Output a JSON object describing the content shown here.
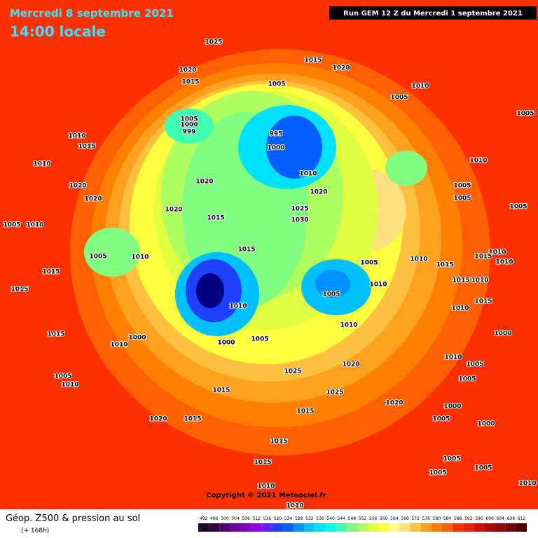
{
  "header": {
    "date": "Mercredi 8 septembre 2021",
    "time": "14:00 locale",
    "run": "Run GEM 12 Z du Mercredi 1 septembre 2021"
  },
  "copyright": "Copyright © 2021 Meteociel.fr",
  "legend": {
    "title": "Géop. Z500 & pression au sol",
    "lead": "(+ 168h)",
    "scale": [
      492,
      496,
      500,
      504,
      508,
      512,
      516,
      520,
      524,
      528,
      532,
      536,
      540,
      544,
      548,
      552,
      556,
      560,
      564,
      568,
      572,
      576,
      580,
      584,
      588,
      592,
      596,
      600,
      604,
      608,
      612
    ],
    "colors": [
      "#20002a",
      "#300040",
      "#4a0070",
      "#6a00a0",
      "#8000c0",
      "#9000e0",
      "#6020ff",
      "#2040ff",
      "#0060ff",
      "#0090ff",
      "#00c0ff",
      "#00e0ff",
      "#00ffe0",
      "#40ffb0",
      "#80ff80",
      "#b0ff60",
      "#e0ff40",
      "#ffff40",
      "#ffff90",
      "#ffe080",
      "#ffc040",
      "#ffa020",
      "#ff8000",
      "#ff6000",
      "#ff3000",
      "#f02000",
      "#d01000",
      "#b00000",
      "#900000",
      "#700000",
      "#500000"
    ]
  },
  "pressure_labels": [
    "1025",
    "1015",
    "1020",
    "1020",
    "1015",
    "1005",
    "1010",
    "1005",
    "1005",
    "1005",
    "1000",
    "999",
    "995",
    "1000",
    "1010",
    "1015",
    "1010",
    "1010",
    "1010",
    "1020",
    "1020",
    "1005",
    "1020",
    "1020",
    "1005",
    "1005",
    "1020",
    "1025",
    "1015",
    "1030",
    "1005",
    "1010",
    "1015",
    "1010",
    "1015",
    "1005",
    "1010",
    "1015",
    "1010",
    "1005",
    "1010",
    "1015",
    "1010",
    "1005",
    "1015",
    "1015",
    "1010",
    "1015",
    "1010",
    "1010",
    "1015",
    "1000",
    "1010",
    "1005",
    "1010",
    "1000",
    "1000",
    "1010",
    "1020",
    "1005",
    "1025",
    "1005",
    "1005",
    "1010",
    "1015",
    "1025",
    "1015",
    "1020",
    "1000",
    "1005",
    "1000",
    "1020",
    "1015",
    "1015",
    "1015",
    "1005",
    "1005",
    "1005",
    "1010",
    "1010",
    "1010"
  ]
}
